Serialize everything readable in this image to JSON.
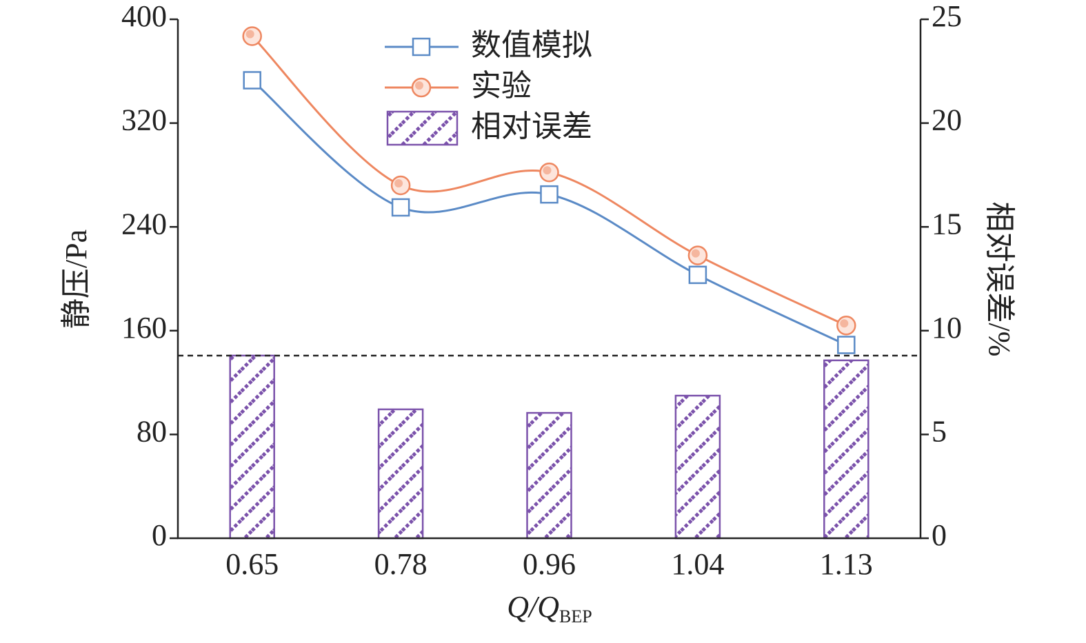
{
  "chart_data": {
    "type": "combo",
    "categories": [
      "0.65",
      "0.78",
      "0.96",
      "1.04",
      "1.13"
    ],
    "x_label": "Q/Q",
    "x_label_subscript": "BEP",
    "y_label": "静压/Pa",
    "y2_label": "相对误差/%",
    "ylim": [
      0,
      400
    ],
    "yticks": [
      0,
      80,
      160,
      240,
      320,
      400
    ],
    "y2lim": [
      0,
      25
    ],
    "y2ticks": [
      0,
      5,
      10,
      15,
      20,
      25
    ],
    "reference_line": {
      "value": 8.8,
      "axis": "y2",
      "style": "dashed"
    },
    "legend": "top-center",
    "series": [
      {
        "name": "数值模拟",
        "type": "line",
        "marker": "square",
        "color": "#5a8ac6",
        "values": [
          353,
          255,
          265,
          203,
          149
        ]
      },
      {
        "name": "实验",
        "type": "line",
        "marker": "circle",
        "color": "#ee8760",
        "values": [
          387,
          272,
          282,
          218,
          164
        ]
      },
      {
        "name": "相对误差",
        "type": "bar",
        "axis": "y2",
        "color": "#7b52ab",
        "values": [
          8.8,
          6.21,
          6.04,
          6.87,
          8.57
        ]
      }
    ]
  }
}
